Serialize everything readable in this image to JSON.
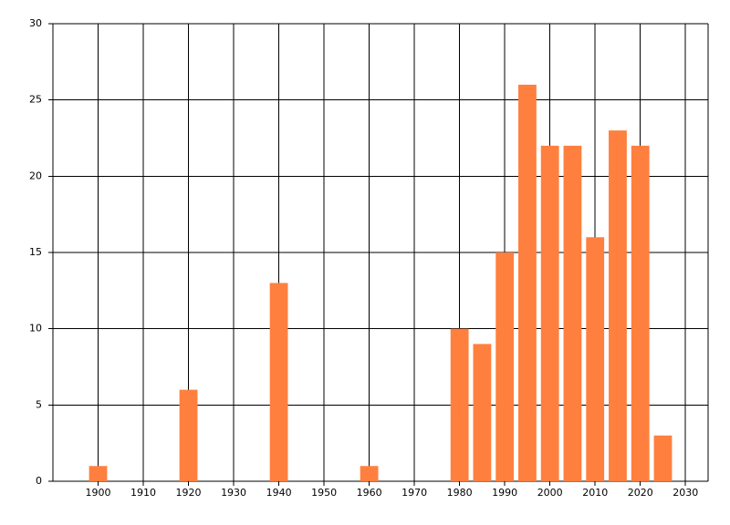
{
  "chart_data": {
    "type": "bar",
    "x": [
      1900,
      1920,
      1940,
      1960,
      1980,
      1985,
      1990,
      1995,
      2000,
      2005,
      2010,
      2015,
      2020,
      2025
    ],
    "values": [
      1,
      6,
      13,
      1,
      10,
      9,
      15,
      26,
      22,
      22,
      16,
      23,
      22,
      3
    ],
    "color": "#ff7f3f",
    "xlim": [
      1890,
      2035
    ],
    "xticks": [
      1900,
      1910,
      1920,
      1930,
      1940,
      1950,
      1960,
      1970,
      1980,
      1990,
      2000,
      2010,
      2020,
      2030
    ],
    "ylim": [
      0,
      30
    ],
    "yticks": [
      0,
      5,
      10,
      15,
      20,
      25,
      30
    ],
    "grid": true
  }
}
